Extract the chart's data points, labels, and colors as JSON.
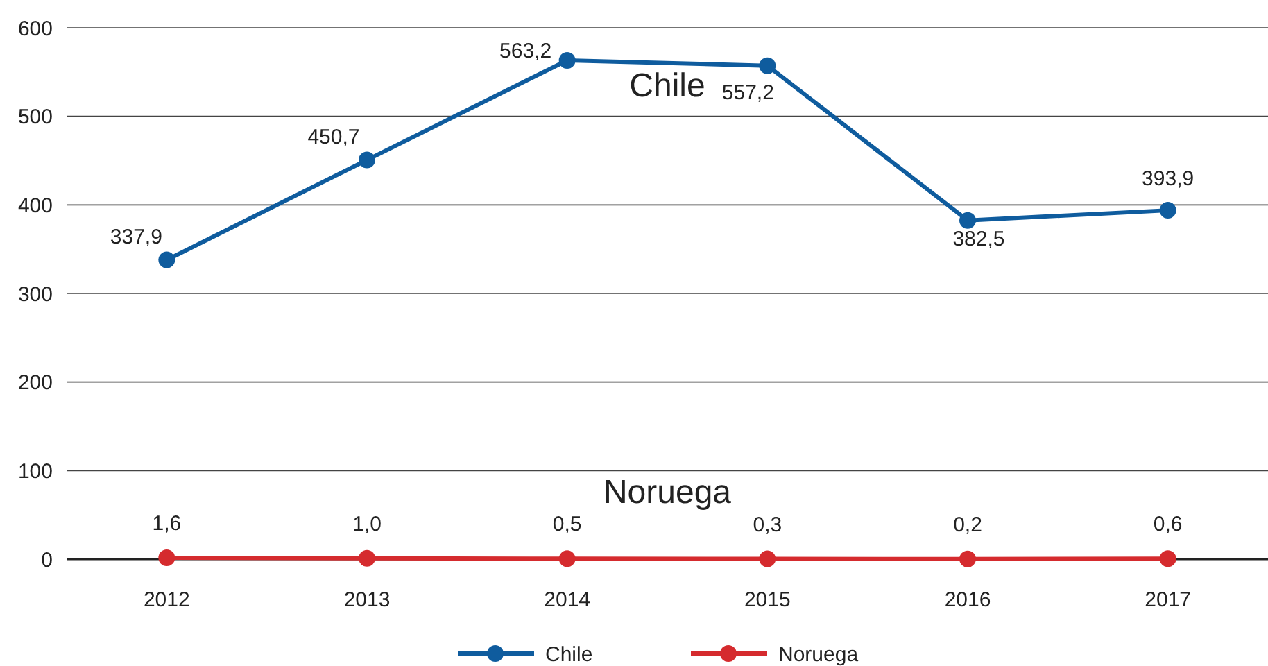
{
  "chart_data": {
    "type": "line",
    "categories": [
      "2012",
      "2013",
      "2014",
      "2015",
      "2016",
      "2017"
    ],
    "series": [
      {
        "name": "Chile",
        "color": "#0f5c9e",
        "values": [
          337.9,
          450.7,
          563.2,
          557.2,
          382.5,
          393.9
        ],
        "value_labels": [
          "337,9",
          "450,7",
          "563,2",
          "557,2",
          "382,5",
          "393,9"
        ]
      },
      {
        "name": "Noruega",
        "color": "#d52b2e",
        "values": [
          1.6,
          1.0,
          0.5,
          0.3,
          0.2,
          0.6
        ],
        "value_labels": [
          "1,6",
          "1,0",
          "0,5",
          "0,3",
          "0,2",
          "0,6"
        ]
      }
    ],
    "ylim": [
      0,
      600
    ],
    "yticks": [
      0,
      100,
      200,
      300,
      400,
      500,
      600
    ],
    "grid": "y",
    "legend": "bottom",
    "marker": "circle",
    "line_style": "solid"
  }
}
